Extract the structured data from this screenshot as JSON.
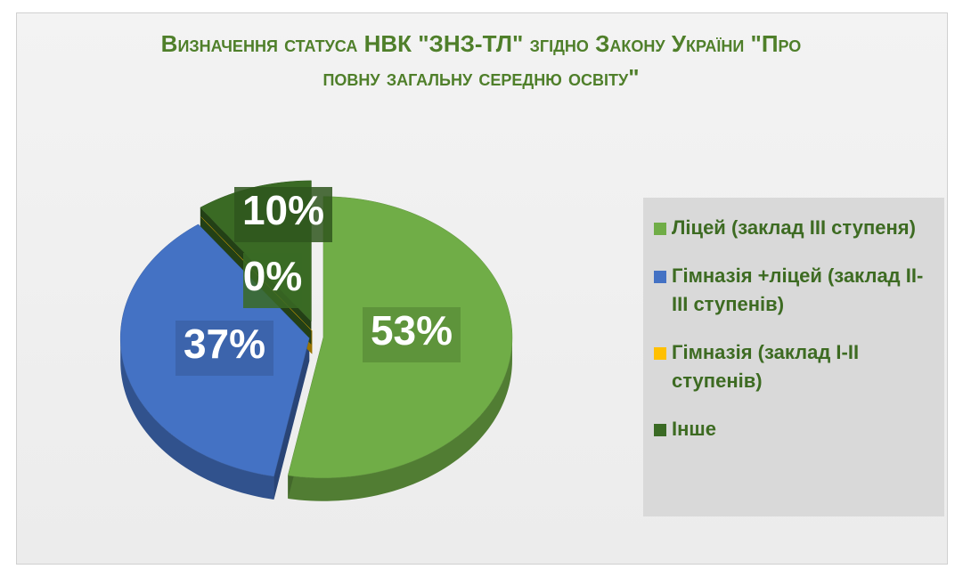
{
  "chart_data": {
    "type": "pie",
    "title": "Визначення статуса НВК \"ЗНЗ-ТЛ\" згідно Закону України \"Про повну загальну середню освіту\"",
    "categories": [
      "Ліцей (заклад ІІІ ступеня)",
      "Гімназія +ліцей (заклад ІІ-ІІІ ступенів)",
      "Гімназія (заклад І-ІІ ступенів)",
      "Інше"
    ],
    "values": [
      53,
      37,
      0,
      10
    ],
    "value_labels": [
      "53%",
      "37%",
      "0%",
      "10%"
    ],
    "colors": [
      "#70ad47",
      "#4472c4",
      "#ffc000",
      "#3a6a24"
    ],
    "legend": "right"
  }
}
